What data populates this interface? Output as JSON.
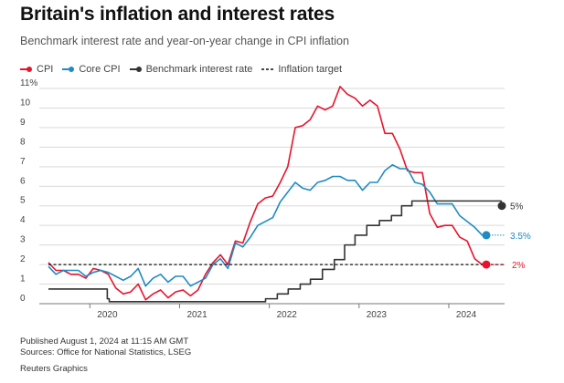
{
  "title": "Britain's inflation and interest rates",
  "subtitle": "Benchmark interest rate and year-on-year change in CPI inflation",
  "footer": {
    "published": "Published August 1, 2024 at 11:15 AM GMT",
    "sources": "Sources: Office for National Statistics, LSEG",
    "credit": "Reuters Graphics"
  },
  "colors": {
    "cpi": "#e8132c",
    "core": "#1e8bc3",
    "rate": "#333333",
    "target": "#111111",
    "grid": "#d9d9d9"
  },
  "chart_data": {
    "type": "line",
    "title": "Britain's inflation and interest rates",
    "subtitle": "Benchmark interest rate and year-on-year change in CPI inflation",
    "xlabel": "",
    "ylabel": "",
    "xlim": [
      "2019-07",
      "2024-08"
    ],
    "ylim": [
      0,
      11
    ],
    "y_ticks": [
      "0",
      "1",
      "2",
      "3",
      "4",
      "5",
      "6",
      "7",
      "8",
      "9",
      "10",
      "11%"
    ],
    "x_ticks": [
      "2020",
      "2021",
      "2022",
      "2023",
      "2024"
    ],
    "legend_position": "top-left",
    "grid": "horizontal",
    "series": [
      {
        "name": "CPI",
        "color": "#e8132c",
        "end_label": "2%",
        "x": [
          "2019-07",
          "2019-08",
          "2019-09",
          "2019-10",
          "2019-11",
          "2019-12",
          "2020-01",
          "2020-02",
          "2020-03",
          "2020-04",
          "2020-05",
          "2020-06",
          "2020-07",
          "2020-08",
          "2020-09",
          "2020-10",
          "2020-11",
          "2020-12",
          "2021-01",
          "2021-02",
          "2021-03",
          "2021-04",
          "2021-05",
          "2021-06",
          "2021-07",
          "2021-08",
          "2021-09",
          "2021-10",
          "2021-11",
          "2021-12",
          "2022-01",
          "2022-02",
          "2022-03",
          "2022-04",
          "2022-05",
          "2022-06",
          "2022-07",
          "2022-08",
          "2022-09",
          "2022-10",
          "2022-11",
          "2022-12",
          "2023-01",
          "2023-02",
          "2023-03",
          "2023-04",
          "2023-05",
          "2023-06",
          "2023-07",
          "2023-08",
          "2023-09",
          "2023-10",
          "2023-11",
          "2023-12",
          "2024-01",
          "2024-02",
          "2024-03",
          "2024-04",
          "2024-05",
          "2024-06"
        ],
        "values": [
          2.1,
          1.7,
          1.7,
          1.5,
          1.5,
          1.3,
          1.8,
          1.7,
          1.5,
          0.8,
          0.5,
          0.6,
          1.0,
          0.2,
          0.5,
          0.7,
          0.3,
          0.6,
          0.7,
          0.4,
          0.7,
          1.5,
          2.1,
          2.5,
          2.0,
          3.2,
          3.1,
          4.2,
          5.1,
          5.4,
          5.5,
          6.2,
          7.0,
          9.0,
          9.1,
          9.4,
          10.1,
          9.9,
          10.1,
          11.1,
          10.7,
          10.5,
          10.1,
          10.4,
          10.1,
          8.7,
          8.7,
          7.9,
          6.8,
          6.7,
          6.7,
          4.6,
          3.9,
          4.0,
          4.0,
          3.4,
          3.2,
          2.3,
          2.0,
          2.0
        ]
      },
      {
        "name": "Core CPI",
        "color": "#1e8bc3",
        "end_label": "3.5%",
        "x": [
          "2019-07",
          "2019-08",
          "2019-09",
          "2019-10",
          "2019-11",
          "2019-12",
          "2020-01",
          "2020-02",
          "2020-03",
          "2020-04",
          "2020-05",
          "2020-06",
          "2020-07",
          "2020-08",
          "2020-09",
          "2020-10",
          "2020-11",
          "2020-12",
          "2021-01",
          "2021-02",
          "2021-03",
          "2021-04",
          "2021-05",
          "2021-06",
          "2021-07",
          "2021-08",
          "2021-09",
          "2021-10",
          "2021-11",
          "2021-12",
          "2022-01",
          "2022-02",
          "2022-03",
          "2022-04",
          "2022-05",
          "2022-06",
          "2022-07",
          "2022-08",
          "2022-09",
          "2022-10",
          "2022-11",
          "2022-12",
          "2023-01",
          "2023-02",
          "2023-03",
          "2023-04",
          "2023-05",
          "2023-06",
          "2023-07",
          "2023-08",
          "2023-09",
          "2023-10",
          "2023-11",
          "2023-12",
          "2024-01",
          "2024-02",
          "2024-03",
          "2024-04",
          "2024-05",
          "2024-06"
        ],
        "values": [
          1.9,
          1.5,
          1.7,
          1.7,
          1.7,
          1.4,
          1.6,
          1.7,
          1.6,
          1.4,
          1.2,
          1.4,
          1.8,
          0.9,
          1.3,
          1.5,
          1.1,
          1.4,
          1.4,
          0.9,
          1.1,
          1.3,
          2.0,
          2.3,
          1.8,
          3.1,
          2.9,
          3.4,
          4.0,
          4.2,
          4.4,
          5.2,
          5.7,
          6.2,
          5.9,
          5.8,
          6.2,
          6.3,
          6.5,
          6.5,
          6.3,
          6.3,
          5.8,
          6.2,
          6.2,
          6.8,
          7.1,
          6.9,
          6.9,
          6.2,
          6.1,
          5.7,
          5.1,
          5.1,
          5.1,
          4.5,
          4.2,
          3.9,
          3.5,
          3.5
        ]
      },
      {
        "name": "Benchmark interest rate",
        "color": "#333333",
        "end_label": "5%",
        "step": true,
        "x": [
          "2019-07",
          "2020-03-11",
          "2020-03-19",
          "2021-12-16",
          "2022-02-03",
          "2022-03-17",
          "2022-05-05",
          "2022-06-16",
          "2022-08-04",
          "2022-09-22",
          "2022-11-03",
          "2022-12-15",
          "2023-02-02",
          "2023-03-23",
          "2023-05-11",
          "2023-06-22",
          "2023-08-03",
          "2024-08-01"
        ],
        "values": [
          0.75,
          0.25,
          0.1,
          0.25,
          0.5,
          0.75,
          1.0,
          1.25,
          1.75,
          2.25,
          3.0,
          3.5,
          4.0,
          4.25,
          4.5,
          5.0,
          5.25,
          5.0
        ]
      },
      {
        "name": "Inflation target",
        "color": "#111111",
        "dashed": true,
        "x": [
          "2019-07",
          "2024-08"
        ],
        "values": [
          2,
          2
        ]
      }
    ]
  }
}
